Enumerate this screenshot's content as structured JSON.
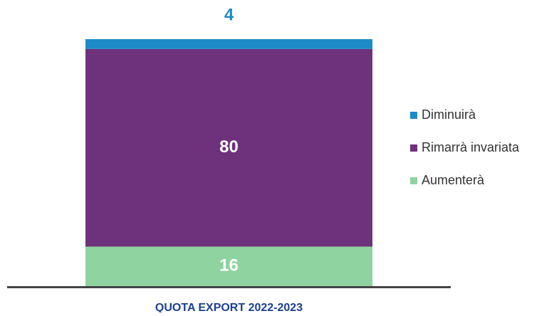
{
  "chart_data": {
    "type": "stacked_bar",
    "categories": [
      "QUOTA EXPORT 2022-2023"
    ],
    "series": [
      {
        "name": "Aumenterà",
        "color": "#8fd3a1",
        "values": [
          16
        ]
      },
      {
        "name": "Rimarrà invariata",
        "color": "#6e317b",
        "values": [
          80
        ]
      },
      {
        "name": "Diminuirà",
        "color": "#1d8bc8",
        "values": [
          4
        ]
      }
    ],
    "legend": "right"
  }
}
